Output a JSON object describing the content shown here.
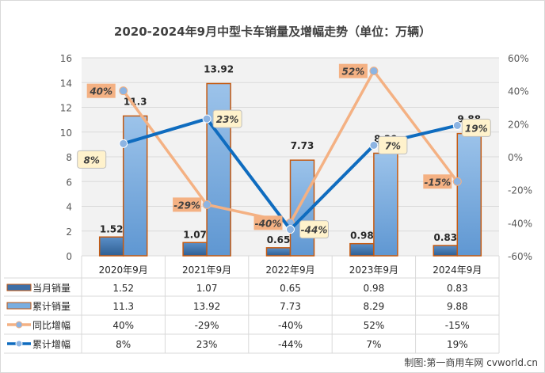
{
  "chart_data": {
    "type": "bar",
    "title": "2020-2024年9月中型卡车销量及增幅走势（单位：万辆）",
    "categories": [
      "2020年9月",
      "2021年9月",
      "2022年9月",
      "2023年9月",
      "2024年9月"
    ],
    "left_axis": {
      "min": 0,
      "max": 16,
      "step": 2,
      "ticks": [
        "0",
        "2",
        "4",
        "6",
        "8",
        "10",
        "12",
        "14",
        "16"
      ]
    },
    "right_axis": {
      "min": -60,
      "max": 60,
      "step": 20,
      "ticks": [
        "-60%",
        "-40%",
        "-20%",
        "0%",
        "20%",
        "40%",
        "60%"
      ]
    },
    "grid": true,
    "legend_placement": "data-table",
    "series": [
      {
        "name": "当月销量",
        "type": "bar",
        "axis": "left",
        "color": "#3f6fa6",
        "values": [
          1.52,
          1.07,
          0.65,
          0.98,
          0.83
        ],
        "labels": [
          "1.52",
          "1.07",
          "0.65",
          "0.98",
          "0.83"
        ]
      },
      {
        "name": "累计销量",
        "type": "bar",
        "axis": "left",
        "color": "#7aaee0",
        "values": [
          11.3,
          13.92,
          7.73,
          8.29,
          9.88
        ],
        "labels": [
          "11.3",
          "13.92",
          "7.73",
          "8.29",
          "9.88"
        ]
      },
      {
        "name": "同比增幅",
        "type": "line",
        "axis": "right",
        "color": "#f4b183",
        "values": [
          40,
          -29,
          -40,
          52,
          -15
        ],
        "labels": [
          "40%",
          "-29%",
          "-40%",
          "52%",
          "-15%"
        ]
      },
      {
        "name": "累计增幅",
        "type": "line",
        "axis": "right",
        "color": "#0f6cbf",
        "values": [
          8,
          23,
          -44,
          7,
          19
        ],
        "labels": [
          "8%",
          "23%",
          "-44%",
          "7%",
          "19%"
        ]
      }
    ],
    "bar_outline_color": "#c55a11"
  },
  "footer": {
    "credit": "制图:第一商用车网 cvworld.cn"
  }
}
